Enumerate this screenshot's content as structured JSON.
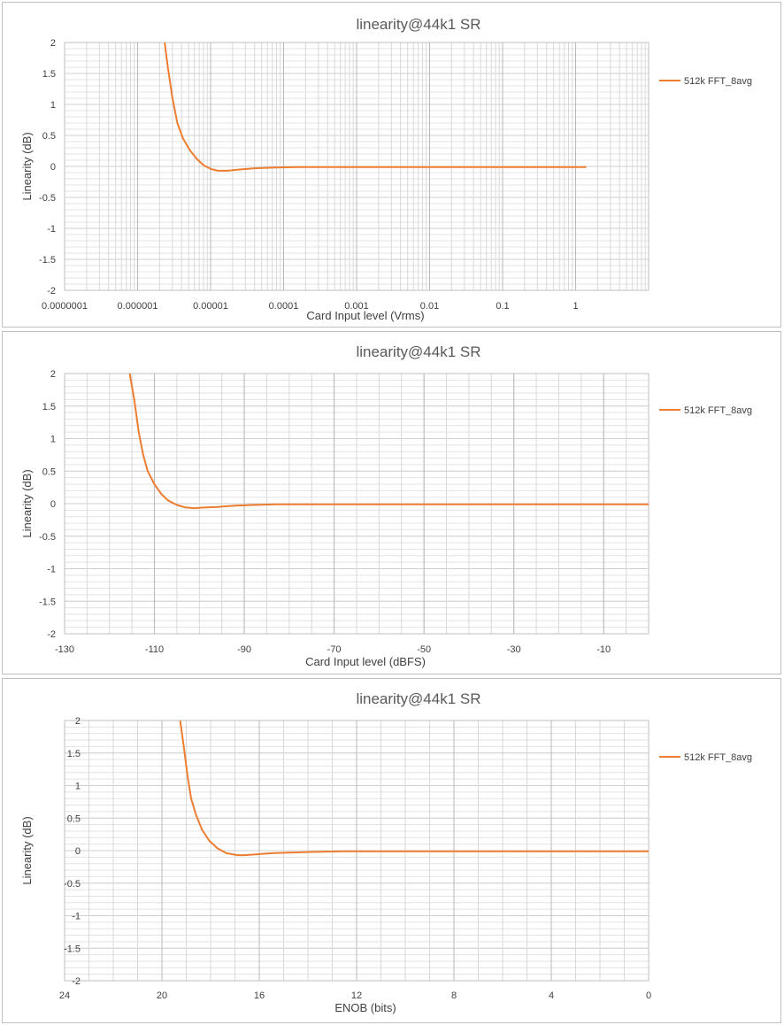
{
  "chart_data": [
    {
      "type": "line",
      "title": "linearity@44k1 SR",
      "xlabel": "Card Input level (Vrms)",
      "ylabel": "Linearity (dB)",
      "xscale": "log",
      "xlim": [
        1e-07,
        10
      ],
      "ylim": [
        -2,
        2
      ],
      "x_ticks": [
        1e-07,
        1e-06,
        1e-05,
        0.0001,
        0.001,
        0.01,
        0.1,
        1
      ],
      "x_tick_labels": [
        "0.0000001",
        "0.000001",
        "0.00001",
        "0.0001",
        "0.001",
        "0.01",
        "0.1",
        "1"
      ],
      "y_ticks": [
        2,
        1.5,
        1,
        0.5,
        0,
        -0.5,
        -1,
        -1.5,
        -2
      ],
      "y_tick_labels": [
        "2",
        "1.5",
        "1",
        "0.5",
        "0",
        "-0.5",
        "-1",
        "-1.5",
        "-2"
      ],
      "grid": true,
      "legend": "right",
      "series": [
        {
          "name": "512k FFT_8avg",
          "color": "#ED7D31",
          "x": [
            2.35e-06,
            2.6e-06,
            3e-06,
            3.5e-06,
            4.2e-06,
            5.2e-06,
            6.5e-06,
            8e-06,
            1e-05,
            1.25e-05,
            1.7e-05,
            2.5e-05,
            4e-05,
            7e-05,
            0.00015,
            0.0005,
            0.001,
            0.01,
            0.1,
            1.0,
            1.4
          ],
          "y": [
            2.0,
            1.6,
            1.1,
            0.7,
            0.45,
            0.26,
            0.12,
            0.02,
            -0.04,
            -0.07,
            -0.07,
            -0.05,
            -0.03,
            -0.02,
            -0.01,
            -0.01,
            -0.01,
            -0.01,
            -0.01,
            -0.01,
            -0.01
          ]
        }
      ]
    },
    {
      "type": "line",
      "title": "linearity@44k1 SR",
      "xlabel": "Card Input level (dBFS)",
      "ylabel": "Linearity (dB)",
      "xlim": [
        -130,
        0
      ],
      "ylim": [
        -2,
        2
      ],
      "x_ticks": [
        -130,
        -110,
        -90,
        -70,
        -50,
        -30,
        -10
      ],
      "x_tick_labels": [
        "-130",
        "-110",
        "-90",
        "-70",
        "-50",
        "-30",
        "-10"
      ],
      "y_ticks": [
        2,
        1.5,
        1,
        0.5,
        0,
        -0.5,
        -1,
        -1.5,
        -2
      ],
      "y_tick_labels": [
        "2",
        "1.5",
        "1",
        "0.5",
        "0",
        "-0.5",
        "-1",
        "-1.5",
        "-2"
      ],
      "grid": true,
      "legend": "right",
      "series": [
        {
          "name": "512k FFT_8avg",
          "color": "#ED7D31",
          "x": [
            -115.5,
            -114.5,
            -113.5,
            -112.5,
            -111.5,
            -110,
            -108.5,
            -107,
            -105,
            -103,
            -101,
            -99,
            -96,
            -92,
            -88,
            -83,
            -75,
            -60,
            -40,
            -20,
            0
          ],
          "y": [
            2.0,
            1.6,
            1.1,
            0.75,
            0.5,
            0.3,
            0.15,
            0.05,
            -0.02,
            -0.06,
            -0.07,
            -0.06,
            -0.05,
            -0.03,
            -0.02,
            -0.01,
            -0.01,
            -0.01,
            -0.01,
            -0.01,
            -0.01
          ]
        }
      ]
    },
    {
      "type": "line",
      "title": "linearity@44k1 SR",
      "xlabel": "ENOB (bits)",
      "ylabel": "Linearity (dB)",
      "xlim": [
        24,
        0
      ],
      "ylim": [
        -2,
        2
      ],
      "x_ticks": [
        24,
        20,
        16,
        12,
        8,
        4,
        0
      ],
      "x_tick_labels": [
        "24",
        "20",
        "16",
        "12",
        "8",
        "4",
        "0"
      ],
      "y_ticks": [
        2,
        1.5,
        1,
        0.5,
        0,
        -0.5,
        -1,
        -1.5,
        -2
      ],
      "y_tick_labels": [
        "2",
        "1.5",
        "1",
        "0.5",
        "0",
        "-0.5",
        "-1",
        "-1.5",
        "-2"
      ],
      "grid": true,
      "legend": "right",
      "series": [
        {
          "name": "512k FFT_8avg",
          "color": "#ED7D31",
          "x": [
            19.25,
            19.1,
            18.95,
            18.8,
            18.6,
            18.35,
            18.05,
            17.7,
            17.35,
            16.9,
            16.6,
            16.2,
            15.5,
            14.8,
            13.8,
            12.5,
            11,
            8,
            4,
            0
          ],
          "y": [
            2.0,
            1.6,
            1.15,
            0.8,
            0.55,
            0.32,
            0.15,
            0.03,
            -0.04,
            -0.07,
            -0.07,
            -0.06,
            -0.04,
            -0.03,
            -0.02,
            -0.01,
            -0.01,
            -0.01,
            -0.01,
            -0.01
          ]
        }
      ]
    }
  ]
}
